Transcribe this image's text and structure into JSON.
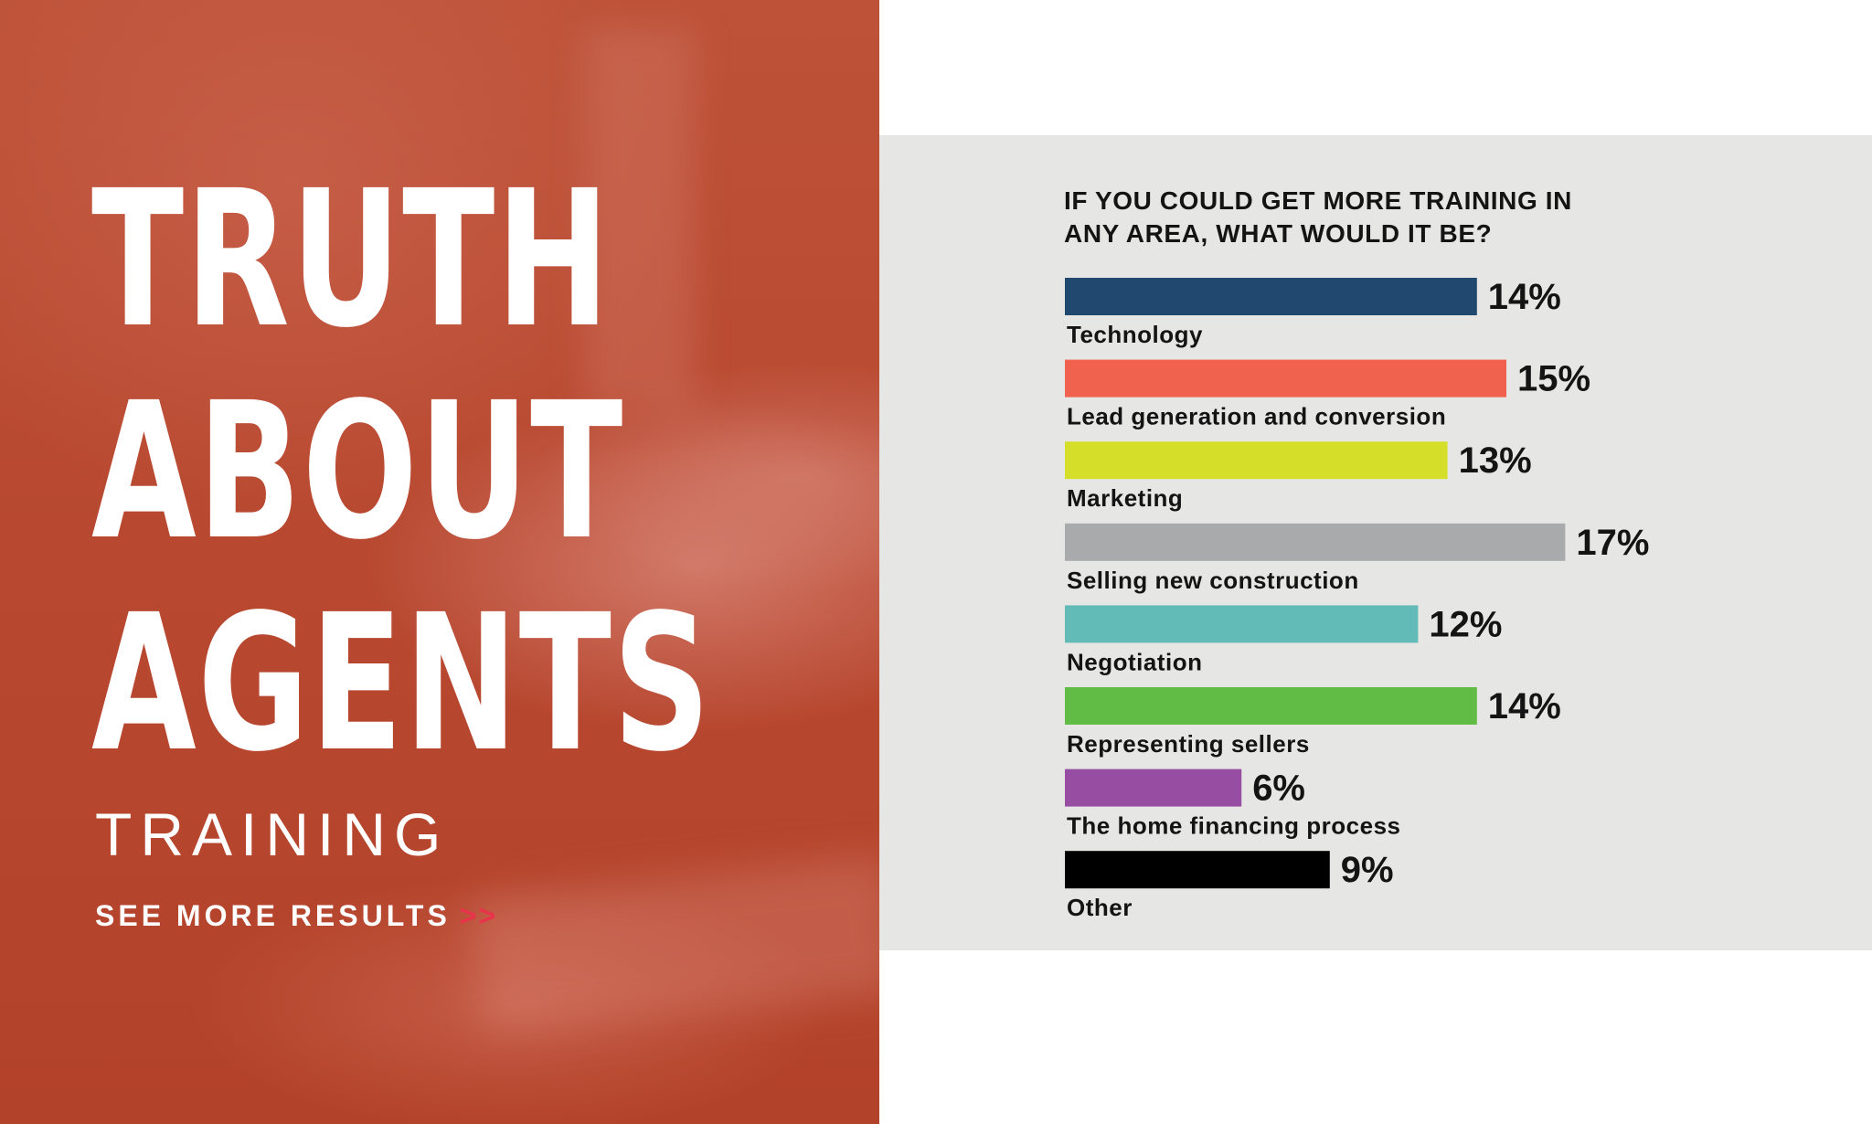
{
  "hero": {
    "title_lines": [
      "TRUTH",
      "ABOUT",
      "AGENTS"
    ],
    "subtitle": "TRAINING",
    "link_label": "SEE MORE RESULTS",
    "link_arrows": ">>"
  },
  "colors": {
    "hero_background": "#b5432a",
    "panel_background": "#e6e6e5",
    "link_arrows": "#e8334a"
  },
  "chart_data": {
    "type": "bar",
    "orientation": "horizontal",
    "title": "IF YOU COULD GET MORE TRAINING IN ANY AREA, WHAT WOULD IT BE?",
    "title_lines": [
      "IF YOU COULD GET MORE TRAINING IN",
      "ANY AREA, WHAT WOULD IT BE?"
    ],
    "categories": [
      "Technology",
      "Lead generation and conversion",
      "Marketing",
      "Selling new construction",
      "Negotiation",
      "Representing sellers",
      "The home financing process",
      "Other"
    ],
    "values": [
      14,
      15,
      13,
      17,
      12,
      14,
      6,
      9
    ],
    "value_labels": [
      "14%",
      "15%",
      "13%",
      "17%",
      "12%",
      "14%",
      "6%",
      "9%"
    ],
    "unit": "%",
    "colors": [
      "#21486f",
      "#f0614e",
      "#d5df2a",
      "#a9aaac",
      "#62bbb7",
      "#61bc46",
      "#974da2",
      "#000000"
    ],
    "grid": false,
    "legend": "none"
  }
}
